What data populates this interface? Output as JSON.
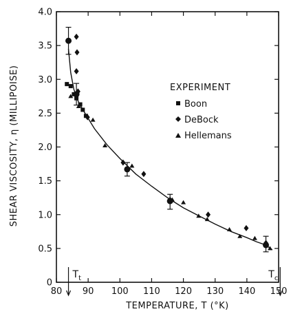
{
  "chart_data": {
    "type": "scatter",
    "xlabel": "TEMPERATURE, T (°K)",
    "ylabel": "SHEAR VISCOSITY, η (MILLIPOISE)",
    "xlim": [
      80,
      150
    ],
    "ylim": [
      0,
      4.0
    ],
    "x_ticks": [
      "80",
      "90",
      "100",
      "110",
      "120",
      "130",
      "140",
      "150"
    ],
    "y_ticks": [
      "0",
      "0.5",
      "1.0",
      "1.5",
      "2.0",
      "2.5",
      "3.0",
      "3.5",
      "4.0"
    ],
    "grid": false,
    "legend": {
      "title": "EXPERIMENT",
      "placement": "middle-right"
    },
    "series": [
      {
        "name": "Boon",
        "marker": "square",
        "points": [
          {
            "x": 83.3,
            "y": 2.93
          },
          {
            "x": 84.5,
            "y": 2.9
          },
          {
            "x": 85.5,
            "y": 2.78
          },
          {
            "x": 86.3,
            "y": 2.72
          },
          {
            "x": 87.5,
            "y": 2.63
          },
          {
            "x": 88.3,
            "y": 2.55
          },
          {
            "x": 89.3,
            "y": 2.46
          }
        ]
      },
      {
        "name": "DeBock",
        "marker": "diamond",
        "points": [
          {
            "x": 83.8,
            "y": 3.57
          },
          {
            "x": 86.3,
            "y": 3.63
          },
          {
            "x": 86.5,
            "y": 3.4
          },
          {
            "x": 86.3,
            "y": 3.12
          },
          {
            "x": 86.8,
            "y": 2.82
          },
          {
            "x": 89.8,
            "y": 2.44
          },
          {
            "x": 101.0,
            "y": 1.77
          },
          {
            "x": 102.3,
            "y": 1.67
          },
          {
            "x": 107.5,
            "y": 1.6
          },
          {
            "x": 115.8,
            "y": 1.22
          },
          {
            "x": 127.8,
            "y": 1.0
          },
          {
            "x": 139.8,
            "y": 0.8
          },
          {
            "x": 146.0,
            "y": 0.58
          }
        ]
      },
      {
        "name": "Hellemans",
        "marker": "triangle",
        "points": [
          {
            "x": 84.5,
            "y": 2.75
          },
          {
            "x": 87.0,
            "y": 2.6
          },
          {
            "x": 91.5,
            "y": 2.4
          },
          {
            "x": 95.3,
            "y": 2.02
          },
          {
            "x": 103.8,
            "y": 1.72
          },
          {
            "x": 116.5,
            "y": 1.22
          },
          {
            "x": 120.0,
            "y": 1.18
          },
          {
            "x": 124.8,
            "y": 0.98
          },
          {
            "x": 127.5,
            "y": 0.93
          },
          {
            "x": 134.5,
            "y": 0.78
          },
          {
            "x": 137.8,
            "y": 0.68
          },
          {
            "x": 142.5,
            "y": 0.65
          },
          {
            "x": 147.3,
            "y": 0.5
          }
        ]
      }
    ],
    "fit_curve": [
      {
        "x": 83.8,
        "y": 3.45
      },
      {
        "x": 84.5,
        "y": 3.1
      },
      {
        "x": 85.5,
        "y": 2.85
      },
      {
        "x": 87.0,
        "y": 2.66
      },
      {
        "x": 89.0,
        "y": 2.5
      },
      {
        "x": 92.0,
        "y": 2.27
      },
      {
        "x": 96.0,
        "y": 2.03
      },
      {
        "x": 100.0,
        "y": 1.83
      },
      {
        "x": 105.0,
        "y": 1.6
      },
      {
        "x": 110.0,
        "y": 1.42
      },
      {
        "x": 115.0,
        "y": 1.25
      },
      {
        "x": 120.0,
        "y": 1.1
      },
      {
        "x": 125.0,
        "y": 0.98
      },
      {
        "x": 130.0,
        "y": 0.86
      },
      {
        "x": 135.0,
        "y": 0.75
      },
      {
        "x": 140.0,
        "y": 0.66
      },
      {
        "x": 143.0,
        "y": 0.6
      },
      {
        "x": 146.0,
        "y": 0.55
      },
      {
        "x": 148.0,
        "y": 0.48
      }
    ],
    "error_bars": [
      {
        "x": 83.8,
        "y": 3.57,
        "low": 3.37,
        "high": 3.77
      },
      {
        "x": 86.3,
        "y": 2.78,
        "low": 2.62,
        "high": 2.94
      },
      {
        "x": 102.3,
        "y": 1.67,
        "low": 1.57,
        "high": 1.77
      },
      {
        "x": 115.8,
        "y": 1.2,
        "low": 1.08,
        "high": 1.3
      },
      {
        "x": 146.0,
        "y": 0.55,
        "low": 0.45,
        "high": 0.68
      }
    ],
    "annotations": [
      {
        "label": "T",
        "subscript": "t",
        "x": 83.8
      },
      {
        "label": "T",
        "subscript": "c",
        "x": 150.5
      }
    ]
  }
}
